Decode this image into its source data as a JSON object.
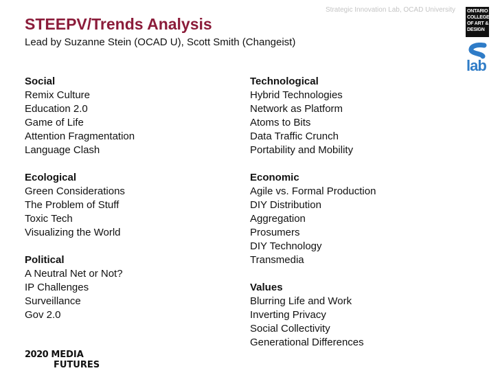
{
  "header": {
    "credit": "Strategic Innovation Lab, OCAD University"
  },
  "slide": {
    "title": "STEEPV/Trends Analysis",
    "subtitle": "Lead by Suzanne Stein (OCAD U), Scott Smith (Changeist)"
  },
  "left_column": [
    {
      "heading": "Social",
      "items": [
        "Remix Culture",
        "Education 2.0",
        "Game of Life",
        "Attention Fragmentation",
        "Language Clash"
      ]
    },
    {
      "heading": "Ecological",
      "items": [
        "Green Considerations",
        "The Problem of Stuff",
        "Toxic Tech",
        "Visualizing the World"
      ]
    },
    {
      "heading": "Political",
      "items": [
        "A Neutral Net or Not?",
        "IP Challenges",
        "Surveillance",
        "Gov 2.0"
      ]
    }
  ],
  "right_column": [
    {
      "heading": "Technological",
      "items": [
        "Hybrid Technologies",
        "Network as Platform",
        "Atoms to Bits",
        "Data Traffic Crunch",
        "Portability and Mobility"
      ]
    },
    {
      "heading": "Economic",
      "items": [
        "Agile vs. Formal Production",
        "DIY Distribution",
        "Aggregation",
        "Prosumers",
        "DIY Technology",
        "Transmedia"
      ]
    },
    {
      "heading": "Values",
      "items": [
        "Blurring Life and Work",
        "Inverting Privacy",
        "Social Collectivity",
        "Generational Differences"
      ]
    }
  ],
  "logos": {
    "ocad_lines": [
      "ONTARIO",
      "COLLEGE",
      "OF ART &",
      "DESIGN"
    ],
    "slab_word": "lab",
    "slab_color": "#2f7cc7",
    "footer_year": "2020",
    "footer_word1": "MEDIA",
    "footer_word2": "FUTURES"
  },
  "colors": {
    "title": "#8b1c3a",
    "credit": "#c4c4c4"
  }
}
